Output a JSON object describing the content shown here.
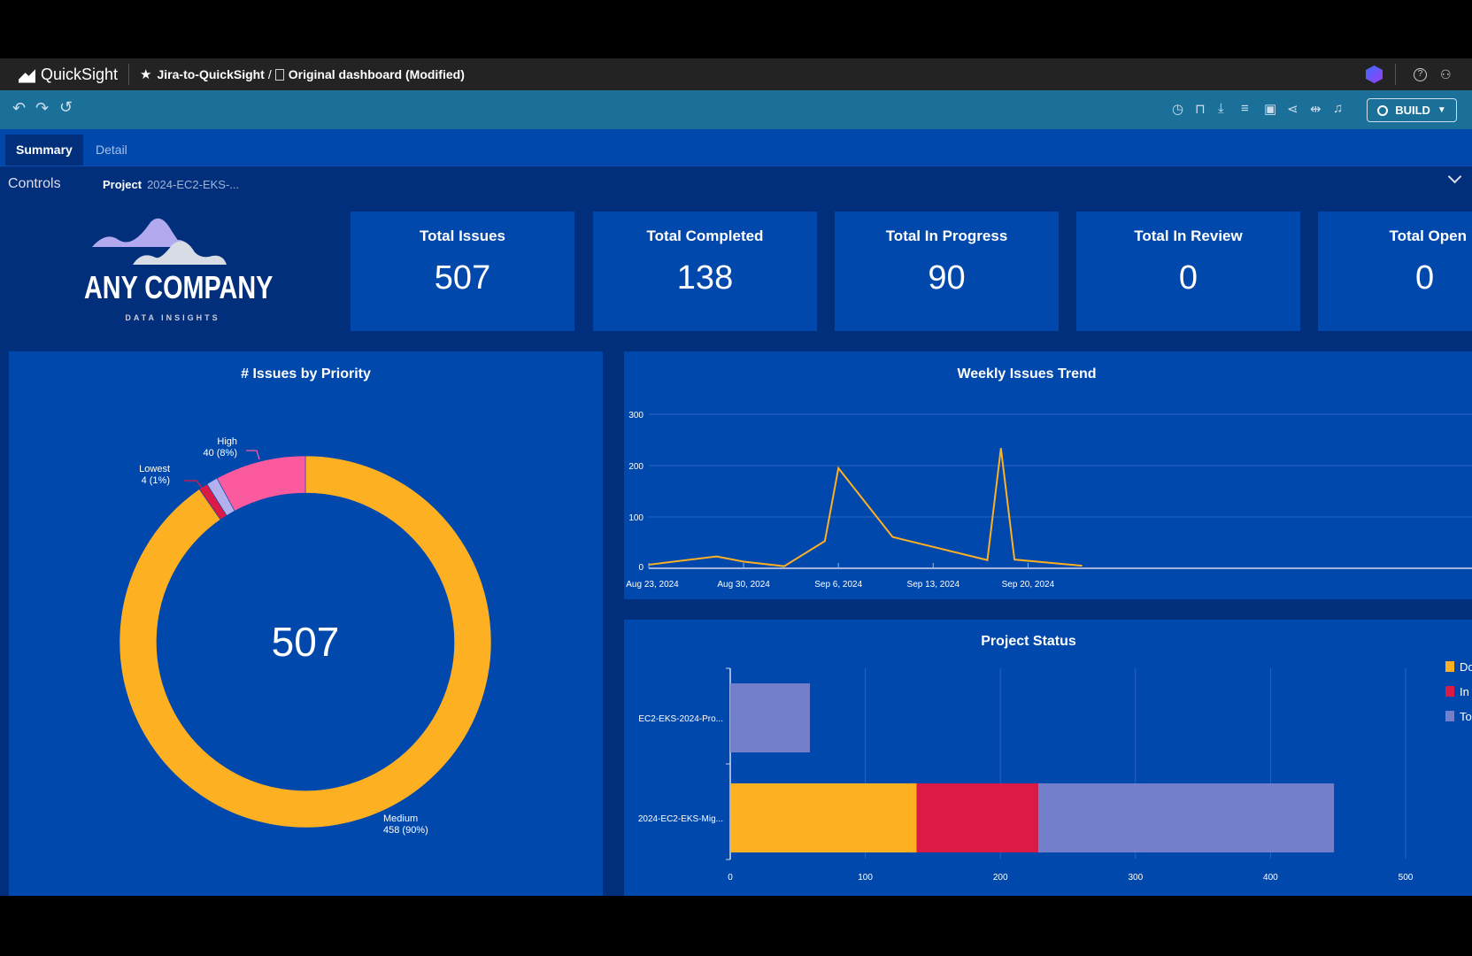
{
  "app": {
    "name": "QuickSight",
    "breadcrumb_analysis": "Jira-to-QuickSight",
    "breadcrumb_sep": "/",
    "dashboard": "Original dashboard (Modified)"
  },
  "toolbar": {
    "build_label": "BUILD",
    "icons": [
      "clock-icon",
      "bookmark-icon",
      "export-icon",
      "dataset-icon",
      "save-icon",
      "share-icon",
      "fit-width-icon",
      "bell-icon"
    ]
  },
  "tabs": [
    {
      "label": "Summary",
      "active": true
    },
    {
      "label": "Detail",
      "active": false
    }
  ],
  "controls": {
    "label": "Controls",
    "param_label": "Project",
    "param_value": "2024-EC2-EKS-..."
  },
  "logo": {
    "name": "ANY COMPANY",
    "tagline": "DATA INSIGHTS"
  },
  "kpis": [
    {
      "title": "Total Issues",
      "value": "507"
    },
    {
      "title": "Total Completed",
      "value": "138"
    },
    {
      "title": "Total In Progress",
      "value": "90"
    },
    {
      "title": "Total In Review",
      "value": "0"
    },
    {
      "title": "Total Open",
      "value": "0"
    }
  ],
  "colors": {
    "orange": "#fdb022",
    "pink": "#fb5a9e",
    "crimson": "#dc1a46",
    "lavender": "#b3b0ee",
    "slate": "#747fcb",
    "panel": "#0148ad"
  },
  "chart_data": [
    {
      "type": "pie",
      "title": "# Issues by Priority",
      "center_label": "507",
      "slices": [
        {
          "name": "Medium",
          "value": 458,
          "label": "458 (90%)",
          "color": "#fdb022"
        },
        {
          "name": "Lowest",
          "value": 4,
          "label": "4 (1%)",
          "color": "#dc1a46"
        },
        {
          "name": "",
          "value": 5,
          "color": "#b3b0ee"
        },
        {
          "name": "High",
          "value": 40,
          "label": "40 (8%)",
          "color": "#fb5a9e"
        }
      ]
    },
    {
      "type": "line",
      "title": "Weekly Issues Trend",
      "ylim": [
        0,
        300
      ],
      "yticks": [
        0,
        100,
        200,
        300
      ],
      "grid": true,
      "xticks": [
        "Aug 23, 2024",
        "Aug 30, 2024",
        "Sep 6, 2024",
        "Sep 13, 2024",
        "Sep 20, 2024"
      ],
      "x": [
        "2024-08-23",
        "2024-08-28",
        "2024-08-30",
        "2024-09-02",
        "2024-09-05",
        "2024-09-06",
        "2024-09-10",
        "2024-09-17",
        "2024-09-18",
        "2024-09-19",
        "2024-09-24"
      ],
      "values": [
        7,
        23,
        13,
        4,
        53,
        195,
        61,
        16,
        234,
        17,
        5
      ],
      "color": "#fdb022"
    },
    {
      "type": "bar",
      "orientation": "horizontal",
      "stacked": true,
      "title": "Project Status",
      "xlim": [
        0,
        500
      ],
      "xticks": [
        0,
        100,
        200,
        300,
        400,
        500
      ],
      "grid": true,
      "legend": "right",
      "categories": [
        "EC2-EKS-2024-Pro...",
        "2024-EC2-EKS-Mig..."
      ],
      "series": [
        {
          "name": "Done",
          "values": [
            0,
            138
          ],
          "color": "#fdb022"
        },
        {
          "name": "In Progress",
          "values": [
            0,
            90
          ],
          "color": "#dc1a46"
        },
        {
          "name": "To Do",
          "values": [
            59,
            219
          ],
          "color": "#747fcb"
        }
      ]
    }
  ]
}
